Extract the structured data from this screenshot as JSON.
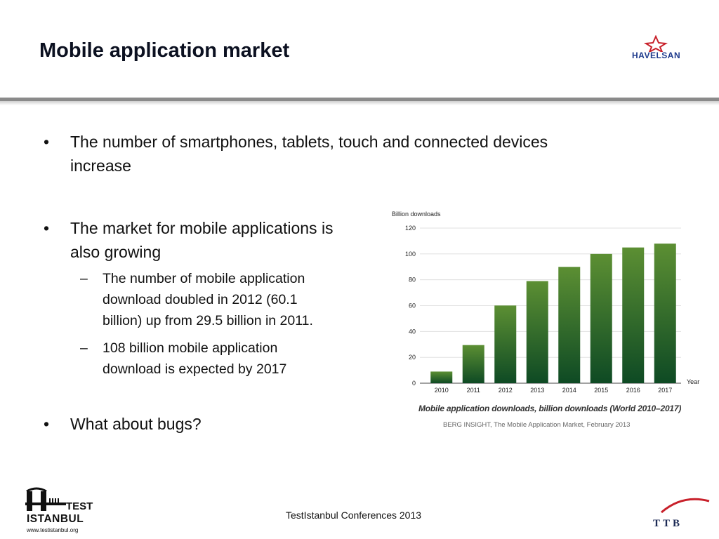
{
  "slide": {
    "title": "Mobile application market"
  },
  "logos": {
    "top_right": "HAVELSAN",
    "bottom_left_line1": "TEST",
    "bottom_left_line2": "ISTANBUL",
    "bottom_left_url": "www.testistanbul.org",
    "bottom_right": "TTB"
  },
  "bullets": [
    {
      "text_line1": "The number of smartphones, tablets, touch and connected devices",
      "text_line2": "increase"
    },
    {
      "text_line1": "The market for mobile applications is",
      "text_line2": "also growing"
    },
    {
      "text_line1": "What about bugs?"
    }
  ],
  "subbullets": [
    {
      "lines": [
        "The number of mobile application",
        "download doubled in 2012 (60.1",
        "billion) up from 29.5 billion in 2011."
      ]
    },
    {
      "lines": [
        "108 billion mobile application",
        "download is expected by 2017"
      ]
    }
  ],
  "symbols": {
    "bullet": "•",
    "dash": "–"
  },
  "chart_data": {
    "type": "bar",
    "categories": [
      "2010",
      "2011",
      "2012",
      "2013",
      "2014",
      "2015",
      "2016",
      "2017"
    ],
    "values": [
      9,
      29.5,
      60.1,
      79,
      90,
      100,
      105,
      108
    ],
    "title": "Mobile application downloads, billion downloads (World 2010–2017)",
    "ylabel": "Billion downloads",
    "xlabel": "Year",
    "ylim": [
      0,
      120
    ],
    "yticks": [
      0,
      20,
      40,
      60,
      80,
      100,
      120
    ],
    "grid": true,
    "colors": {
      "bar_top": "#5c8f33",
      "bar_bottom": "#0e4a24"
    },
    "source": "BERG INSIGHT, The Mobile Application Market, February 2013"
  },
  "footer": {
    "text": "TestIstanbul Conferences 2013"
  }
}
